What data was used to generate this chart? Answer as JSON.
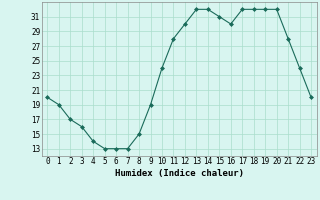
{
  "x": [
    0,
    1,
    2,
    3,
    4,
    5,
    6,
    7,
    8,
    9,
    10,
    11,
    12,
    13,
    14,
    15,
    16,
    17,
    18,
    19,
    20,
    21,
    22,
    23
  ],
  "y": [
    20,
    19,
    17,
    16,
    14,
    13,
    13,
    13,
    15,
    19,
    24,
    28,
    30,
    32,
    32,
    31,
    30,
    32,
    32,
    32,
    32,
    28,
    24,
    20
  ],
  "line_color": "#1a6b5a",
  "marker": "D",
  "marker_size": 2.0,
  "bg_color": "#d8f5f0",
  "grid_color": "#aaddcc",
  "xlabel": "Humidex (Indice chaleur)",
  "xlim": [
    -0.5,
    23.5
  ],
  "ylim": [
    12,
    33
  ],
  "yticks": [
    13,
    15,
    17,
    19,
    21,
    23,
    25,
    27,
    29,
    31
  ],
  "xtick_labels": [
    "0",
    "1",
    "2",
    "3",
    "4",
    "5",
    "6",
    "7",
    "8",
    "9",
    "10",
    "11",
    "12",
    "13",
    "14",
    "15",
    "16",
    "17",
    "18",
    "19",
    "20",
    "21",
    "22",
    "23"
  ],
  "xlabel_fontsize": 6.5,
  "tick_fontsize": 5.5
}
